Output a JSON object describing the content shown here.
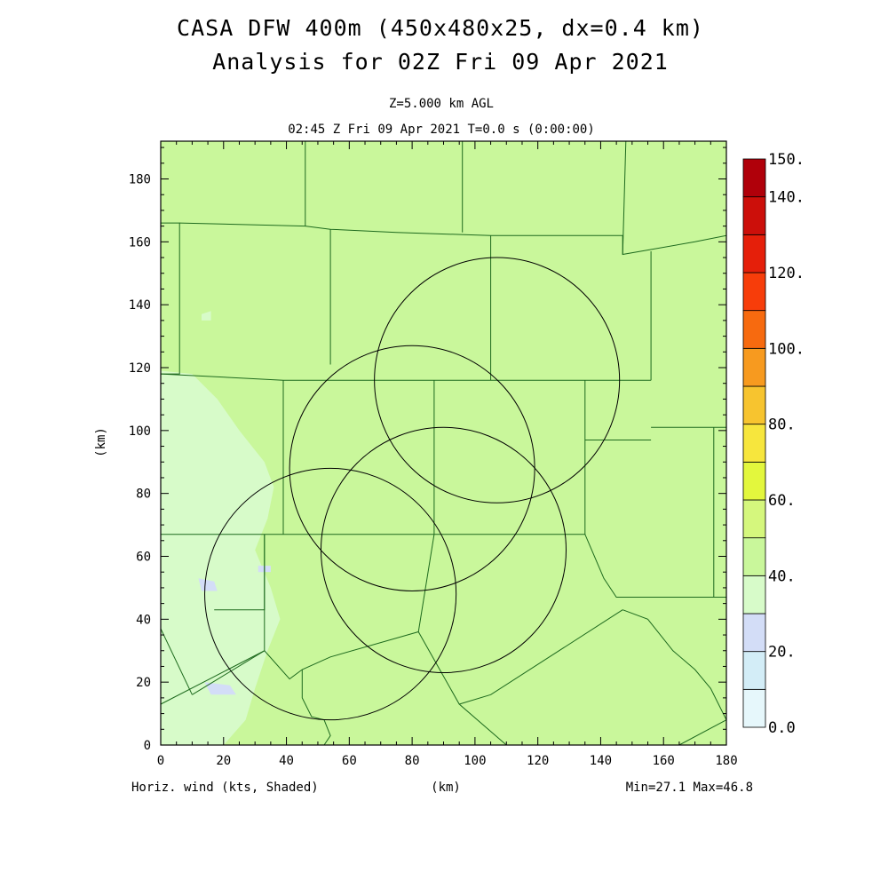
{
  "header": {
    "title_line1": "CASA DFW 400m (450x480x25, dx=0.4 km)",
    "title_line2": "Analysis for 02Z Fri 09 Apr 2021",
    "level": "Z=5.000 km AGL",
    "time": "02:45 Z Fri 09 Apr 2021    T=0.0 s (0:00:00)"
  },
  "footer": {
    "field_label": "Horiz. wind (kts, Shaded)",
    "xunit": "(km)",
    "minmax": "Min=27.1 Max=46.8"
  },
  "colors": {
    "frame": "#000000",
    "county_lines": "#1e6a1e",
    "radar_rings": "#000000"
  },
  "chart_data": {
    "type": "heatmap",
    "title": "CASA DFW 400m (450x480x25, dx=0.4 km) Analysis for 02Z Fri 09 Apr 2021",
    "xlabel": "(km)",
    "ylabel": "(km)",
    "xlim": [
      0,
      180
    ],
    "ylim": [
      0,
      192
    ],
    "x_ticks": [
      0,
      20,
      40,
      60,
      80,
      100,
      120,
      140,
      160,
      180
    ],
    "y_ticks": [
      0,
      20,
      40,
      60,
      80,
      100,
      120,
      140,
      160,
      180
    ],
    "x_tick_labels": [
      "0",
      "20",
      "40",
      "60",
      "80",
      "100",
      "120",
      "140",
      "160",
      "180"
    ],
    "y_tick_labels": [
      "0",
      "20",
      "40",
      "60",
      "80",
      "100",
      "120",
      "140",
      "160",
      "180"
    ],
    "field": "Horiz. wind",
    "units": "kts",
    "min": 27.1,
    "max": 46.8,
    "dominant_value_range": [
      40,
      50
    ],
    "colorbar": {
      "levels": [
        0,
        10,
        20,
        30,
        40,
        50,
        60,
        70,
        80,
        90,
        100,
        110,
        120,
        130,
        140,
        150
      ],
      "labels": [
        "0.0",
        "20.",
        "40.",
        "60.",
        "80.",
        "100.",
        "120.",
        "140.",
        "150."
      ],
      "label_values": [
        0,
        20,
        40,
        60,
        80,
        100,
        120,
        140,
        150
      ],
      "colors": [
        "#e6f7fb",
        "#d3edf7",
        "#d3ddf7",
        "#d7fbc9",
        "#c9f79b",
        "#d5f77d",
        "#e3f73d",
        "#f7e63d",
        "#f7c42f",
        "#f79a1f",
        "#f76a0f",
        "#f73d0a",
        "#e51f0a",
        "#cc0f0a",
        "#b0000a"
      ]
    },
    "low_wind_regions": [
      {
        "value_range": [
          30,
          40
        ],
        "xy": [
          [
            0,
            119
          ],
          [
            10,
            118
          ],
          [
            18,
            110
          ],
          [
            25,
            100
          ],
          [
            33,
            90
          ],
          [
            36,
            82
          ],
          [
            34,
            72
          ],
          [
            30,
            62
          ],
          [
            35,
            50
          ],
          [
            38,
            40
          ],
          [
            34,
            30
          ],
          [
            30,
            18
          ],
          [
            27,
            8
          ],
          [
            20,
            0
          ],
          [
            0,
            0
          ]
        ]
      },
      {
        "value_range": [
          20,
          30
        ],
        "xy": [
          [
            12,
            53
          ],
          [
            17,
            52
          ],
          [
            18,
            49
          ],
          [
            13,
            49
          ]
        ]
      },
      {
        "value_range": [
          20,
          30
        ],
        "xy": [
          [
            14,
            20
          ],
          [
            22,
            19
          ],
          [
            24,
            16
          ],
          [
            16,
            16
          ]
        ]
      },
      {
        "value_range": [
          20,
          30
        ],
        "xy": [
          [
            31,
            57
          ],
          [
            35,
            57
          ],
          [
            35,
            55
          ],
          [
            31,
            55
          ]
        ]
      },
      {
        "value_range": [
          30,
          40
        ],
        "xy": [
          [
            13,
            137
          ],
          [
            16,
            138
          ],
          [
            16,
            135
          ],
          [
            13,
            135
          ]
        ]
      }
    ],
    "radar_rings": [
      {
        "center": [
          107,
          116
        ],
        "radius_km": 39
      },
      {
        "center": [
          80,
          88
        ],
        "radius_km": 39
      },
      {
        "center": [
          90,
          62
        ],
        "radius_km": 39
      },
      {
        "center": [
          54,
          48
        ],
        "radius_km": 40
      }
    ],
    "county_boundaries": [
      [
        [
          0,
          166
        ],
        [
          6,
          166
        ],
        [
          6,
          118
        ],
        [
          0,
          118
        ]
      ],
      [
        [
          6,
          166
        ],
        [
          46,
          165
        ],
        [
          54,
          164
        ],
        [
          75,
          163
        ],
        [
          105,
          162
        ],
        [
          147,
          162
        ],
        [
          147,
          156
        ],
        [
          170,
          160
        ],
        [
          180,
          162
        ]
      ],
      [
        [
          46,
          192
        ],
        [
          46,
          165
        ]
      ],
      [
        [
          96,
          192
        ],
        [
          96,
          163
        ]
      ],
      [
        [
          148,
          192
        ],
        [
          147,
          156
        ]
      ],
      [
        [
          54,
          164
        ],
        [
          54,
          121
        ]
      ],
      [
        [
          105,
          162
        ],
        [
          105,
          116
        ]
      ],
      [
        [
          156,
          157
        ],
        [
          156,
          116
        ]
      ],
      [
        [
          0,
          118
        ],
        [
          39,
          116
        ],
        [
          80,
          116
        ],
        [
          105,
          116
        ],
        [
          135,
          116
        ],
        [
          156,
          116
        ]
      ],
      [
        [
          39,
          116
        ],
        [
          39,
          67
        ]
      ],
      [
        [
          87,
          116
        ],
        [
          87,
          67
        ]
      ],
      [
        [
          135,
          116
        ],
        [
          135,
          67
        ]
      ],
      [
        [
          135,
          97
        ],
        [
          156,
          97
        ]
      ],
      [
        [
          156,
          101
        ],
        [
          180,
          101
        ]
      ],
      [
        [
          176,
          101
        ],
        [
          176,
          47
        ],
        [
          180,
          47
        ]
      ],
      [
        [
          0,
          67
        ],
        [
          33,
          67
        ],
        [
          87,
          67
        ],
        [
          135,
          67
        ],
        [
          141,
          53
        ],
        [
          145,
          47
        ],
        [
          176,
          47
        ]
      ],
      [
        [
          33,
          67
        ],
        [
          33,
          43
        ],
        [
          17,
          43
        ]
      ],
      [
        [
          33,
          67
        ],
        [
          33,
          30
        ],
        [
          10,
          16
        ]
      ],
      [
        [
          0,
          37
        ],
        [
          10,
          16
        ]
      ],
      [
        [
          0,
          13
        ],
        [
          33,
          30
        ],
        [
          41,
          21
        ],
        [
          45,
          24
        ],
        [
          54,
          28
        ],
        [
          82,
          36
        ],
        [
          95,
          13
        ],
        [
          110,
          0
        ]
      ],
      [
        [
          82,
          36
        ],
        [
          87,
          67
        ]
      ],
      [
        [
          95,
          13
        ],
        [
          105,
          16
        ],
        [
          147,
          43
        ]
      ],
      [
        [
          147,
          43
        ],
        [
          155,
          40
        ],
        [
          163,
          30
        ],
        [
          170,
          24
        ],
        [
          175,
          18
        ],
        [
          178,
          12
        ],
        [
          180,
          8
        ]
      ],
      [
        [
          45,
          24
        ],
        [
          45,
          15
        ],
        [
          48,
          9
        ],
        [
          52,
          8
        ],
        [
          54,
          3
        ],
        [
          52,
          0
        ]
      ],
      [
        [
          165,
          0
        ],
        [
          180,
          8
        ]
      ]
    ]
  }
}
